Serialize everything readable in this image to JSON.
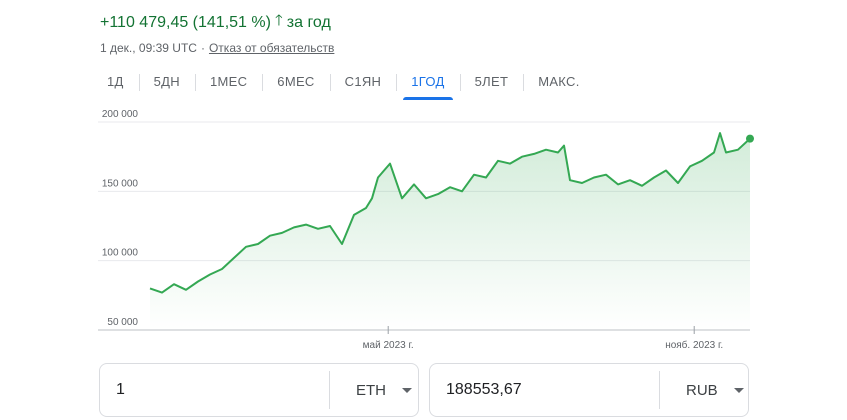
{
  "header": {
    "change_text": "+110 479,45 (141,51 %)",
    "arrow_icon": "arrow-up-icon",
    "period_text": "за год",
    "timestamp": "1 дек., 09:39 UTC",
    "separator": "·",
    "disclaimer": "Отказ от обязательств"
  },
  "tabs": [
    {
      "label": "1Д",
      "active": false
    },
    {
      "label": "5ДН",
      "active": false
    },
    {
      "label": "1МЕС",
      "active": false
    },
    {
      "label": "6МЕС",
      "active": false
    },
    {
      "label": "С1ЯН",
      "active": false
    },
    {
      "label": "1ГОД",
      "active": true
    },
    {
      "label": "5ЛЕТ",
      "active": false
    },
    {
      "label": "МАКС.",
      "active": false
    }
  ],
  "colors": {
    "line": "#34a853",
    "positive_text": "#137333",
    "active_tab": "#1a73e8",
    "gridline": "#e8eaed",
    "axis_text": "#5f6368"
  },
  "chart_data": {
    "type": "area",
    "y_ticks": [
      {
        "value": 50000,
        "label": "50 000"
      },
      {
        "value": 100000,
        "label": "100 000"
      },
      {
        "value": 150000,
        "label": "150 000"
      },
      {
        "value": 200000,
        "label": "200 000"
      }
    ],
    "ylim": [
      50000,
      200000
    ],
    "x_ticks": [
      {
        "x": 0.397,
        "label": "май 2023 г."
      },
      {
        "x": 0.907,
        "label": "нояб. 2023 г."
      }
    ],
    "xlim": [
      0,
      1
    ],
    "series": [
      {
        "x": [
          0,
          0.02,
          0.04,
          0.06,
          0.08,
          0.1,
          0.12,
          0.14,
          0.16,
          0.18,
          0.2,
          0.22,
          0.24,
          0.26,
          0.28,
          0.3,
          0.32,
          0.34,
          0.36,
          0.37,
          0.38,
          0.4,
          0.42,
          0.44,
          0.46,
          0.48,
          0.5,
          0.52,
          0.54,
          0.56,
          0.58,
          0.6,
          0.62,
          0.64,
          0.66,
          0.68,
          0.69,
          0.7,
          0.72,
          0.74,
          0.76,
          0.78,
          0.8,
          0.82,
          0.84,
          0.86,
          0.88,
          0.9,
          0.92,
          0.94,
          0.95,
          0.96,
          0.98,
          1.0
        ],
        "y": [
          80000,
          77000,
          83000,
          79000,
          85000,
          90000,
          94000,
          102000,
          110000,
          112000,
          118000,
          120000,
          124000,
          126000,
          123000,
          125000,
          112000,
          133000,
          138000,
          145000,
          160000,
          170000,
          145000,
          155000,
          145000,
          148000,
          153000,
          150000,
          162000,
          160000,
          172000,
          170000,
          175000,
          177000,
          180000,
          178000,
          183000,
          158000,
          156000,
          160000,
          162000,
          155000,
          158000,
          154000,
          160000,
          165000,
          156000,
          168000,
          172000,
          178000,
          192000,
          178000,
          180000,
          188000
        ]
      }
    ]
  },
  "converter": {
    "from_amount": "1",
    "from_currency": "ETH",
    "to_amount": "188553,67",
    "to_currency": "RUB"
  }
}
